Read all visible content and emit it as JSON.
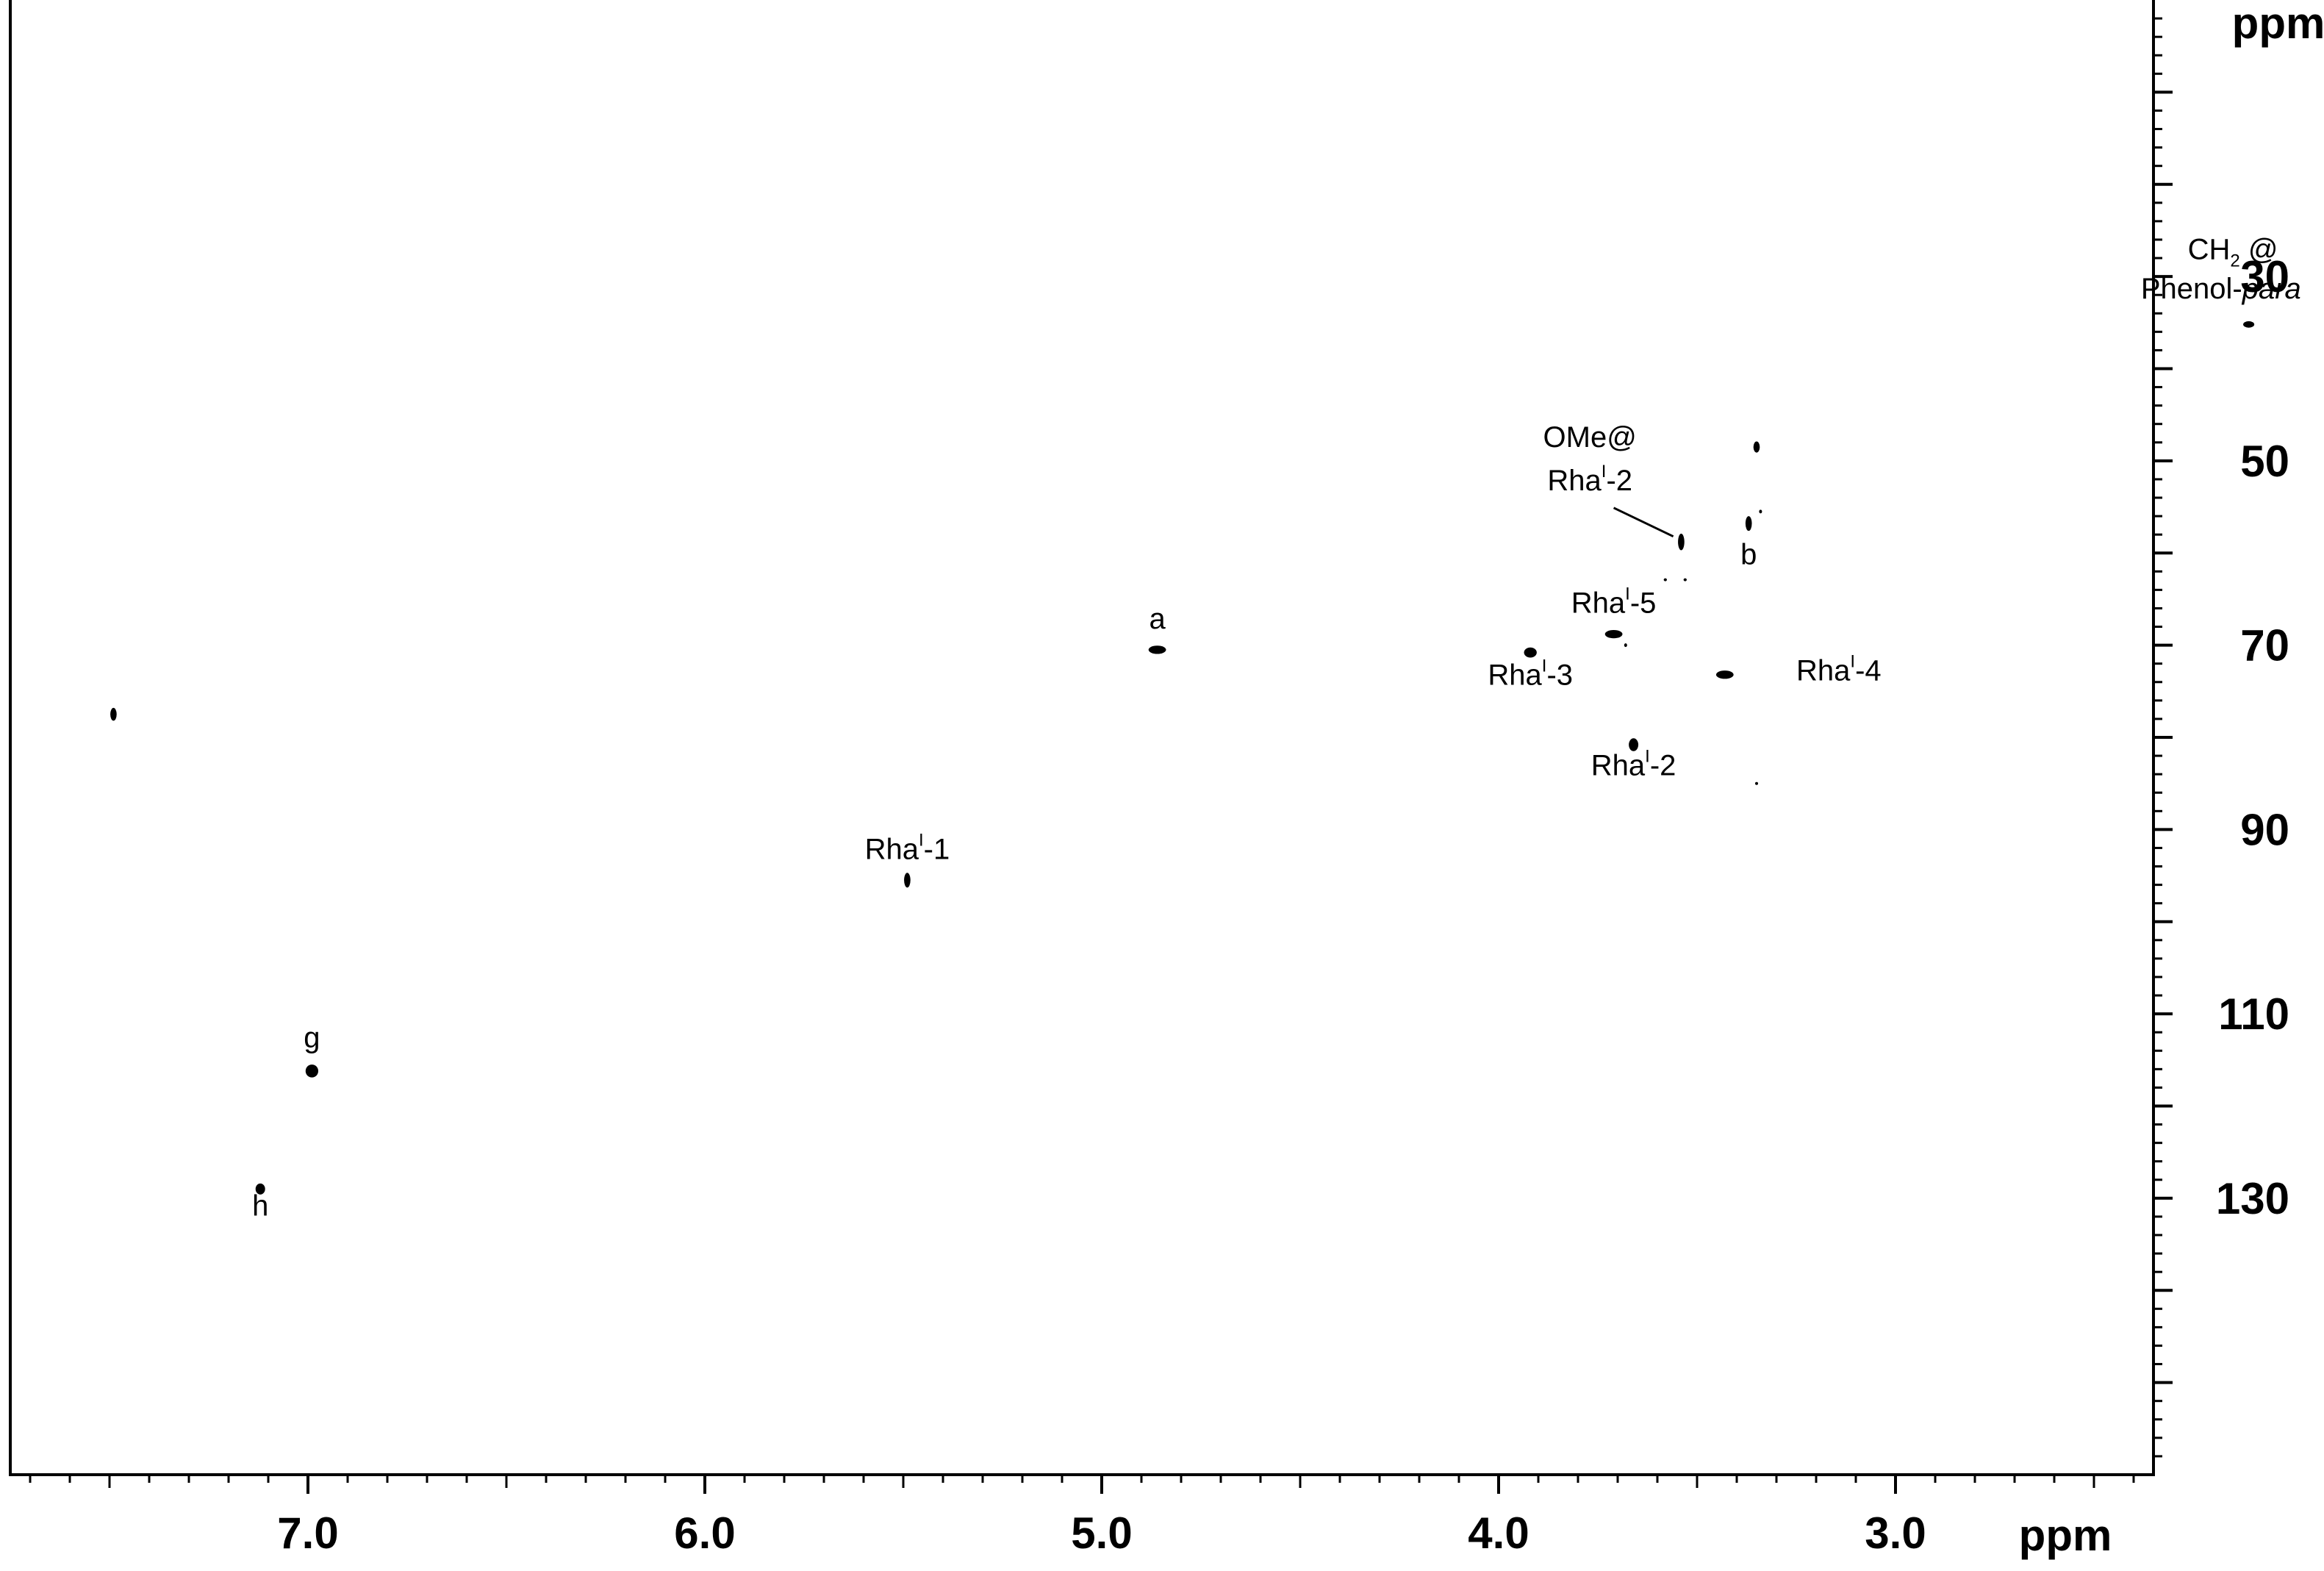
{
  "chart_data": {
    "type": "scatter",
    "title": "",
    "xlabel": "ppm",
    "ylabel": "ppm",
    "xlim": [
      7.75,
      2.35
    ],
    "ylim": [
      0,
      160
    ],
    "x_axis_reversed": true,
    "y_axis_reversed": true,
    "y_axis_position": "right",
    "x_ticks_major": [
      7.0,
      6.0,
      5.0,
      4.0,
      3.0
    ],
    "x_tick_labels": [
      "7.0",
      "6.0",
      "5.0",
      "4.0",
      "3.0"
    ],
    "x_ticks_minor_step": 0.1,
    "y_ticks_labeled": [
      30,
      50,
      70,
      90,
      110,
      130
    ],
    "y_tick_labels": [
      "30",
      "50",
      "70",
      "90",
      "110",
      "130"
    ],
    "y_ticks_major": [
      20,
      30,
      40,
      50,
      60,
      70,
      80,
      90,
      100,
      110,
      120,
      130,
      140
    ],
    "y_ticks_minor_step": 2,
    "grid": false,
    "legend": "none",
    "peaks": [
      {
        "name": "unlabeled-1",
        "x": 7.49,
        "y": 77.5,
        "rx": 0.008,
        "ry": 0.7
      },
      {
        "name": "h",
        "x": 7.12,
        "y": 129.0,
        "rx": 0.012,
        "ry": 0.6
      },
      {
        "name": "g",
        "x": 6.99,
        "y": 116.2,
        "rx": 0.016,
        "ry": 0.7
      },
      {
        "name": "Rha-1",
        "x": 5.49,
        "y": 95.5,
        "rx": 0.008,
        "ry": 0.8
      },
      {
        "name": "a",
        "x": 4.86,
        "y": 70.5,
        "rx": 0.022,
        "ry": 0.45
      },
      {
        "name": "Rha-3",
        "x": 3.92,
        "y": 70.8,
        "rx": 0.016,
        "ry": 0.55
      },
      {
        "name": "Rha-5",
        "x": 3.71,
        "y": 68.8,
        "rx": 0.022,
        "ry": 0.45
      },
      {
        "name": "Rha-2",
        "x": 3.66,
        "y": 80.8,
        "rx": 0.012,
        "ry": 0.7
      },
      {
        "name": "OMe@Rha-2",
        "x": 3.54,
        "y": 58.8,
        "rx": 0.008,
        "ry": 0.9
      },
      {
        "name": "Rha-4",
        "x": 3.43,
        "y": 73.2,
        "rx": 0.022,
        "ry": 0.45
      },
      {
        "name": "b",
        "x": 3.37,
        "y": 56.8,
        "rx": 0.008,
        "ry": 0.8
      },
      {
        "name": "unlabeled-2",
        "x": 3.35,
        "y": 48.5,
        "rx": 0.008,
        "ry": 0.6
      },
      {
        "name": "CH2@Phenol-para",
        "x": 2.11,
        "y": 35.2,
        "rx": 0.014,
        "ry": 0.35
      },
      {
        "name": "artifact-1",
        "x": 3.58,
        "y": 62.9,
        "rx": 0.004,
        "ry": 0.12
      },
      {
        "name": "artifact-2",
        "x": 3.53,
        "y": 62.9,
        "rx": 0.004,
        "ry": 0.12
      },
      {
        "name": "artifact-3",
        "x": 3.68,
        "y": 70.0,
        "rx": 0.003,
        "ry": 0.2
      },
      {
        "name": "artifact-4",
        "x": 3.34,
        "y": 55.5,
        "rx": 0.003,
        "ry": 0.2
      },
      {
        "name": "artifact-5",
        "x": 3.35,
        "y": 85.0,
        "rx": 0.003,
        "ry": 0.15
      }
    ],
    "annotations": [
      {
        "name": "label-a",
        "main": "a",
        "x": 4.86,
        "y": 68.2
      },
      {
        "name": "label-b",
        "main": "b",
        "x": 3.37,
        "y": 61.2
      },
      {
        "name": "label-g",
        "main": "g",
        "x": 6.99,
        "y": 113.6
      },
      {
        "name": "label-h",
        "main": "h",
        "x": 7.12,
        "y": 131.9
      },
      {
        "name": "label-rha-1",
        "main": "Rha",
        "sup": "I",
        "tail": "-1",
        "x": 5.49,
        "y": 93.2
      },
      {
        "name": "label-rha-2",
        "main": "Rha",
        "sup": "I",
        "tail": "-2",
        "x": 3.66,
        "y": 84.1
      },
      {
        "name": "label-rha-3",
        "main": "Rha",
        "sup": "I",
        "tail": "-3",
        "x": 3.92,
        "y": 74.3
      },
      {
        "name": "label-rha-4",
        "main": "Rha",
        "sup": "I",
        "tail": "-4",
        "x": 3.25,
        "y": 73.8,
        "anchor": "start"
      },
      {
        "name": "label-rha-5",
        "main": "Rha",
        "sup": "I",
        "tail": "-5",
        "x": 3.71,
        "y": 66.5
      },
      {
        "name": "label-ome-line1",
        "main": "OMe@",
        "x": 3.77,
        "y": 48.5
      },
      {
        "name": "label-ome-line2",
        "main": "Rha",
        "sup": "I",
        "tail": "-2",
        "x": 3.77,
        "y": 53.2
      },
      {
        "name": "label-ch2-line1",
        "main": "CH",
        "sub": "2",
        "tail": " @",
        "x": 2.15,
        "y": 28.1
      },
      {
        "name": "label-ch2-line2",
        "main": "Phenol-",
        "italic": "para",
        "x": 2.18,
        "y": 32.4
      }
    ],
    "leader_line": {
      "name": "ome-leader-line",
      "from": [
        3.71,
        55.1
      ],
      "to": [
        3.56,
        58.2
      ]
    }
  }
}
